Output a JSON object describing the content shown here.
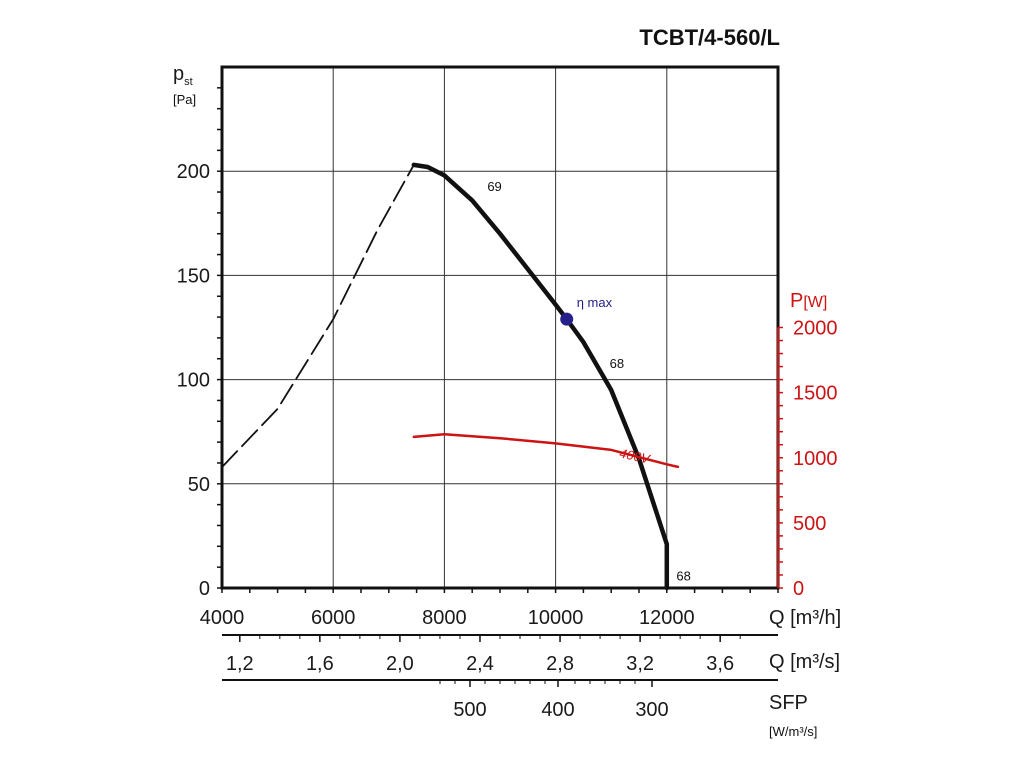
{
  "chart_data": {
    "type": "line",
    "title": "TCBT/4-560/L",
    "y_left": {
      "label_main": "p",
      "label_sub": "st",
      "unit": "[Pa]",
      "range": [
        0,
        250
      ],
      "ticks": [
        0,
        50,
        100,
        150,
        200
      ]
    },
    "y_right": {
      "label_main": "P",
      "unit": "[W]",
      "range": [
        0,
        2000
      ],
      "ticks": [
        0,
        500,
        1000,
        1500,
        2000
      ],
      "color": "#cc1414"
    },
    "x_primary": {
      "label": "Q [m³/h]",
      "range": [
        4000,
        14000
      ],
      "ticks": [
        4000,
        6000,
        8000,
        10000,
        12000
      ]
    },
    "x_secondary": {
      "label": "Q [m³/s]",
      "ticks": [
        "1,2",
        "1,6",
        "2,0",
        "2,4",
        "2,8",
        "3,2",
        "3,6"
      ]
    },
    "x_sfp": {
      "label": "SFP",
      "unit": "[W/m³/s]",
      "ticks": [
        "500",
        "400",
        "300"
      ]
    },
    "grid": true,
    "series": [
      {
        "style": "dashed",
        "color": "#111111",
        "points": [
          [
            4000,
            58
          ],
          [
            5000,
            86
          ],
          [
            6000,
            129
          ],
          [
            6800,
            172
          ],
          [
            7450,
            203
          ]
        ]
      },
      {
        "style": "solid",
        "color": "#111111",
        "points": [
          [
            7450,
            203
          ],
          [
            7700,
            202
          ],
          [
            8000,
            198
          ],
          [
            8500,
            186
          ],
          [
            9000,
            170
          ],
          [
            9500,
            153
          ],
          [
            10000,
            136
          ],
          [
            10200,
            129
          ],
          [
            10500,
            118
          ],
          [
            11000,
            95
          ],
          [
            11500,
            62
          ],
          [
            12000,
            21
          ],
          [
            12000,
            0
          ]
        ]
      },
      {
        "name": "400V",
        "axis": "right",
        "style": "solid",
        "color": "#cc1414",
        "points": [
          [
            7450,
            1160
          ],
          [
            8000,
            1180
          ],
          [
            9000,
            1150
          ],
          [
            10000,
            1110
          ],
          [
            11000,
            1060
          ],
          [
            12000,
            950
          ],
          [
            12200,
            930
          ]
        ]
      }
    ],
    "annotations": [
      {
        "text": "69",
        "x": 8700,
        "y": 193
      },
      {
        "text": "η max",
        "x": 10200,
        "y": 129,
        "marker": "circle",
        "color": "#25208a"
      },
      {
        "text": "68",
        "x": 10900,
        "y": 108
      },
      {
        "text": "68",
        "x": 12100,
        "y": 6
      }
    ]
  }
}
